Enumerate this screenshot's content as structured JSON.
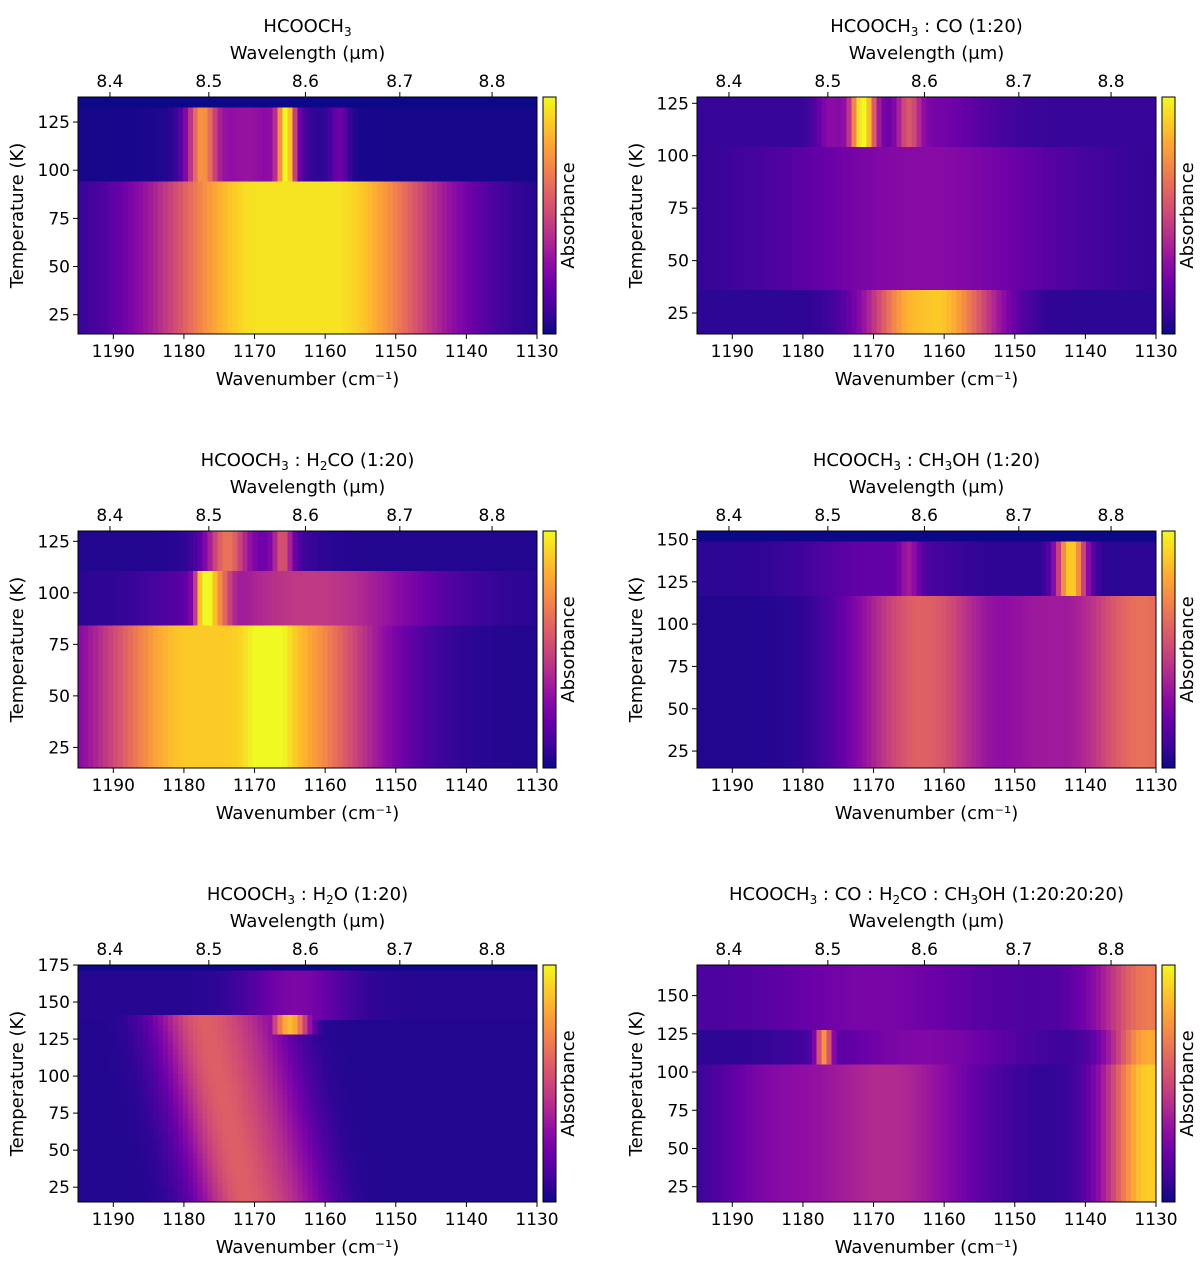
{
  "colormap": [
    "#0d0887",
    "#41049d",
    "#6a00a8",
    "#8f0da4",
    "#b12a90",
    "#cc4778",
    "#e16462",
    "#f2844b",
    "#fca636",
    "#fcce25",
    "#f0f921"
  ],
  "colorbar_label": "Absorbance",
  "chart_data": [
    {
      "type": "heatmap",
      "title_parts": [
        [
          "HCOOCH",
          0
        ],
        [
          "3",
          1
        ]
      ],
      "xlabel": "Wavenumber (cm⁻¹)",
      "x2label": "Wavelength (μm)",
      "ylabel": "Temperature (K)",
      "xlim": [
        1195,
        1130
      ],
      "ylim": [
        15,
        138
      ],
      "xticks": [
        1190,
        1180,
        1170,
        1160,
        1150,
        1140,
        1130
      ],
      "x2ticks": [
        8.4,
        8.5,
        8.6,
        8.7,
        8.8
      ],
      "yticks": [
        25,
        50,
        75,
        100,
        125
      ],
      "regions": [
        {
          "t": [
            15,
            95
          ],
          "base": 0.02,
          "peaks": [
            [
              1164,
              0.93,
              11,
              5
            ]
          ]
        },
        {
          "t": [
            95,
            132
          ],
          "base": 0.02,
          "peaks": [
            [
              1177.5,
              0.6,
              1.5
            ],
            [
              1171,
              0.3,
              5
            ],
            [
              1165.5,
              0.85,
              0.9
            ],
            [
              1158,
              0.18,
              1
            ]
          ]
        }
      ]
    },
    {
      "type": "heatmap",
      "title_parts": [
        [
          "HCOOCH",
          0
        ],
        [
          "3",
          1
        ],
        [
          " : CO (1:20)",
          0
        ]
      ],
      "xlabel": "Wavenumber (cm⁻¹)",
      "x2label": "Wavelength (μm)",
      "ylabel": "Temperature (K)",
      "xlim": [
        1195,
        1130
      ],
      "ylim": [
        15,
        128
      ],
      "xticks": [
        1190,
        1180,
        1170,
        1160,
        1150,
        1140,
        1130
      ],
      "x2ticks": [
        8.4,
        8.5,
        8.6,
        8.7,
        8.8
      ],
      "yticks": [
        25,
        50,
        75,
        100,
        125
      ],
      "regions": [
        {
          "t": [
            15,
            37
          ],
          "base": 0.06,
          "peaks": [
            [
              1163,
              0.78,
              5,
              1
            ],
            [
              1155,
              0.2,
              4
            ]
          ]
        },
        {
          "t": [
            37,
            105
          ],
          "base": 0.06,
          "peaks": [
            [
              1163,
              0.22,
              14
            ]
          ]
        },
        {
          "t": [
            105,
            128
          ],
          "base": 0.08,
          "peaks": [
            [
              1171.5,
              0.9,
              1.3
            ],
            [
              1165,
              0.35,
              1.2
            ],
            [
              1176,
              0.2,
              1.5
            ],
            [
              1162,
              0.15,
              6
            ]
          ]
        }
      ]
    },
    {
      "type": "heatmap",
      "title_parts": [
        [
          "HCOOCH",
          0
        ],
        [
          "3",
          1
        ],
        [
          " : H",
          0
        ],
        [
          "2",
          1
        ],
        [
          "CO (1:20)",
          0
        ]
      ],
      "xlabel": "Wavenumber (cm⁻¹)",
      "x2label": "Wavelength (μm)",
      "ylabel": "Temperature (K)",
      "xlim": [
        1195,
        1130
      ],
      "ylim": [
        15,
        130
      ],
      "xticks": [
        1190,
        1180,
        1170,
        1160,
        1150,
        1140,
        1130
      ],
      "x2ticks": [
        8.4,
        8.5,
        8.6,
        8.7,
        8.8
      ],
      "yticks": [
        25,
        50,
        75,
        100,
        125
      ],
      "regions": [
        {
          "t": [
            15,
            85
          ],
          "base": 0.04,
          "peaks": [
            [
              1173,
              0.85,
              10,
              6
            ],
            [
              1168,
              0.2,
              2
            ]
          ]
        },
        {
          "t": [
            85,
            112
          ],
          "base": 0.05,
          "peaks": [
            [
              1177,
              0.85,
              0.9
            ],
            [
              1175,
              0.4,
              1.2
            ],
            [
              1162,
              0.4,
              11,
              1
            ]
          ]
        },
        {
          "t": [
            112,
            130
          ],
          "base": 0.04,
          "peaks": [
            [
              1174,
              0.5,
              2
            ],
            [
              1166,
              0.4,
              1
            ],
            [
              1170,
              0.15,
              5
            ]
          ]
        }
      ]
    },
    {
      "type": "heatmap",
      "title_parts": [
        [
          "HCOOCH",
          0
        ],
        [
          "3",
          1
        ],
        [
          " : CH",
          0
        ],
        [
          "3",
          1
        ],
        [
          "OH (1:20)",
          0
        ]
      ],
      "xlabel": "Wavenumber (cm⁻¹)",
      "x2label": "Wavelength (μm)",
      "ylabel": "Temperature (K)",
      "xlim": [
        1195,
        1130
      ],
      "ylim": [
        15,
        155
      ],
      "xticks": [
        1190,
        1180,
        1170,
        1160,
        1150,
        1140,
        1130
      ],
      "x2ticks": [
        8.4,
        8.5,
        8.6,
        8.7,
        8.8
      ],
      "yticks": [
        25,
        50,
        75,
        100,
        125,
        150
      ],
      "regions": [
        {
          "t": [
            15,
            117
          ],
          "base": 0.04,
          "peaks": [
            [
              1163,
              0.55,
              7
            ],
            [
              1132,
              0.6,
              7
            ],
            [
              1147,
              0.2,
              4
            ]
          ]
        },
        {
          "t": [
            117,
            150
          ],
          "base": 0.06,
          "peaks": [
            [
              1142,
              0.85,
              1.5
            ],
            [
              1165,
              0.2,
              1
            ],
            [
              1170,
              0.12,
              7
            ]
          ]
        }
      ]
    },
    {
      "type": "heatmap",
      "title_parts": [
        [
          "HCOOCH",
          0
        ],
        [
          "3",
          1
        ],
        [
          " : H",
          0
        ],
        [
          "2",
          1
        ],
        [
          "O (1:20)",
          0
        ]
      ],
      "xlabel": "Wavenumber (cm⁻¹)",
      "x2label": "Wavelength (μm)",
      "ylabel": "Temperature (K)",
      "xlim": [
        1195,
        1130
      ],
      "ylim": [
        15,
        175
      ],
      "xticks": [
        1190,
        1180,
        1170,
        1160,
        1150,
        1140,
        1130
      ],
      "x2ticks": [
        8.4,
        8.5,
        8.6,
        8.7,
        8.8
      ],
      "yticks": [
        25,
        50,
        75,
        100,
        125,
        150,
        175
      ],
      "regions": [
        {
          "t": [
            15,
            140
          ],
          "base": 0.04,
          "peaks": [
            [
              1172,
              0.5,
              4.5
            ],
            [
              1164,
              0.25,
              4
            ]
          ],
          "shift": [
            [
              15,
              0
            ],
            [
              140,
              6
            ]
          ]
        },
        {
          "t": [
            128,
            142
          ],
          "base": 0.0,
          "peaks": [
            [
              1165,
              0.85,
              2
            ]
          ]
        },
        {
          "t": [
            140,
            170
          ],
          "base": 0.05,
          "peaks": [
            [
              1164,
              0.2,
              5
            ]
          ]
        }
      ]
    },
    {
      "type": "heatmap",
      "title_parts": [
        [
          "HCOOCH",
          0
        ],
        [
          "3",
          1
        ],
        [
          " : CO : H",
          0
        ],
        [
          "2",
          1
        ],
        [
          "CO : CH",
          0
        ],
        [
          "3",
          1
        ],
        [
          "OH (1:20:20:20)",
          0
        ]
      ],
      "xlabel": "Wavenumber (cm⁻¹)",
      "x2label": "Wavelength (μm)",
      "ylabel": "Temperature (K)",
      "xlim": [
        1195,
        1130
      ],
      "ylim": [
        15,
        170
      ],
      "xticks": [
        1190,
        1180,
        1170,
        1160,
        1150,
        1140,
        1130
      ],
      "x2ticks": [
        8.4,
        8.5,
        8.6,
        8.7,
        8.8
      ],
      "yticks": [
        25,
        50,
        75,
        100,
        125,
        150
      ],
      "regions": [
        {
          "t": [
            15,
            105
          ],
          "base": 0.05,
          "peaks": [
            [
              1168,
              0.35,
              9
            ],
            [
              1131,
              0.85,
              4.5
            ],
            [
              1185,
              0.15,
              6
            ]
          ]
        },
        {
          "t": [
            105,
            128
          ],
          "base": 0.06,
          "peaks": [
            [
              1177,
              0.6,
              0.8
            ],
            [
              1163,
              0.2,
              10
            ],
            [
              1131,
              0.75,
              4
            ]
          ]
        },
        {
          "t": [
            128,
            170
          ],
          "base": 0.12,
          "peaks": [
            [
              1131,
              0.55,
              5
            ],
            [
              1170,
              0.12,
              10
            ]
          ]
        }
      ]
    }
  ]
}
